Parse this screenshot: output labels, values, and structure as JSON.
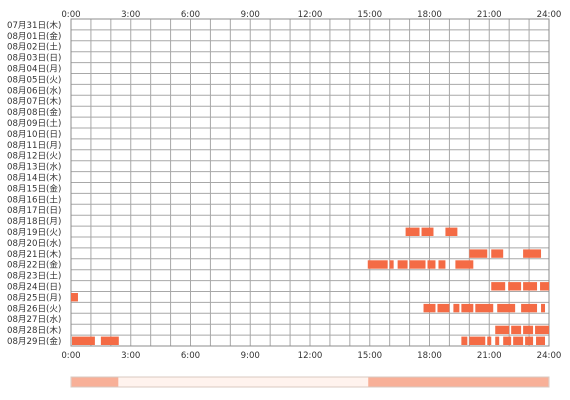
{
  "chart_data": {
    "type": "heatmap",
    "x_unit": "hour",
    "xlim": [
      0,
      24
    ],
    "x_ticks": [
      {
        "hour": 0,
        "label": "0:00"
      },
      {
        "hour": 3,
        "label": "3:00"
      },
      {
        "hour": 6,
        "label": "6:00"
      },
      {
        "hour": 9,
        "label": "9:00"
      },
      {
        "hour": 12,
        "label": "12:00"
      },
      {
        "hour": 15,
        "label": "15:00"
      },
      {
        "hour": 18,
        "label": "18:00"
      },
      {
        "hour": 21,
        "label": "21:00"
      },
      {
        "hour": 24,
        "label": "24:00"
      }
    ],
    "grid": true,
    "grid_step_hours": 1,
    "colors": {
      "bar": "#f46b45",
      "grid": "#a8a8a8",
      "frame": "#8c8c8c",
      "summary_base": "#fff3ee",
      "summary_hot": "#f8b098"
    },
    "rows": [
      {
        "label": "07月31日(木)",
        "segments": []
      },
      {
        "label": "08月01日(金)",
        "segments": []
      },
      {
        "label": "08月02日(土)",
        "segments": []
      },
      {
        "label": "08月03日(日)",
        "segments": []
      },
      {
        "label": "08月04日(月)",
        "segments": []
      },
      {
        "label": "08月05日(火)",
        "segments": []
      },
      {
        "label": "08月06日(水)",
        "segments": []
      },
      {
        "label": "08月07日(木)",
        "segments": []
      },
      {
        "label": "08月08日(金)",
        "segments": []
      },
      {
        "label": "08月09日(土)",
        "segments": []
      },
      {
        "label": "08月10日(日)",
        "segments": []
      },
      {
        "label": "08月11日(月)",
        "segments": []
      },
      {
        "label": "08月12日(火)",
        "segments": []
      },
      {
        "label": "08月13日(水)",
        "segments": []
      },
      {
        "label": "08月14日(木)",
        "segments": []
      },
      {
        "label": "08月15日(金)",
        "segments": []
      },
      {
        "label": "08月16日(土)",
        "segments": []
      },
      {
        "label": "08月17日(日)",
        "segments": []
      },
      {
        "label": "08月18日(月)",
        "segments": []
      },
      {
        "label": "08月19日(火)",
        "segments": [
          [
            16.8,
            17.5
          ],
          [
            17.6,
            18.2
          ],
          [
            18.8,
            19.4
          ]
        ]
      },
      {
        "label": "08月20日(水)",
        "segments": []
      },
      {
        "label": "08月21日(木)",
        "segments": [
          [
            20.0,
            20.9
          ],
          [
            21.1,
            21.7
          ],
          [
            22.7,
            23.6
          ]
        ]
      },
      {
        "label": "08月22日(金)",
        "segments": [
          [
            14.9,
            15.9
          ],
          [
            16.0,
            16.2
          ],
          [
            16.4,
            16.9
          ],
          [
            17.0,
            17.8
          ],
          [
            17.9,
            18.3
          ],
          [
            18.45,
            18.8
          ],
          [
            19.3,
            20.2
          ]
        ]
      },
      {
        "label": "08月23日(土)",
        "segments": []
      },
      {
        "label": "08月24日(日)",
        "segments": [
          [
            21.1,
            21.8
          ],
          [
            21.95,
            22.6
          ],
          [
            22.7,
            23.4
          ],
          [
            23.55,
            24.0
          ]
        ]
      },
      {
        "label": "08月25日(月)",
        "segments": [
          [
            0.0,
            0.35
          ]
        ]
      },
      {
        "label": "08月26日(火)",
        "segments": [
          [
            17.7,
            18.3
          ],
          [
            18.4,
            19.0
          ],
          [
            19.2,
            19.5
          ],
          [
            19.6,
            20.2
          ],
          [
            20.3,
            21.2
          ],
          [
            21.4,
            22.3
          ],
          [
            22.6,
            23.4
          ],
          [
            23.6,
            23.8
          ]
        ]
      },
      {
        "label": "08月27日(水)",
        "segments": []
      },
      {
        "label": "08月28日(木)",
        "segments": [
          [
            21.3,
            22.0
          ],
          [
            22.1,
            22.6
          ],
          [
            22.7,
            23.2
          ],
          [
            23.3,
            24.0
          ]
        ]
      },
      {
        "label": "08月29日(金)",
        "segments": [
          [
            0.05,
            1.2
          ],
          [
            1.5,
            2.4
          ],
          [
            19.6,
            19.9
          ],
          [
            20.0,
            20.8
          ],
          [
            20.9,
            21.1
          ],
          [
            21.3,
            21.5
          ],
          [
            21.7,
            22.1
          ],
          [
            22.2,
            22.7
          ],
          [
            22.8,
            23.2
          ],
          [
            23.35,
            23.8
          ]
        ]
      }
    ],
    "summary_strip": {
      "hot_ranges": [
        [
          0.0,
          2.4
        ],
        [
          14.9,
          24.0
        ]
      ]
    }
  }
}
